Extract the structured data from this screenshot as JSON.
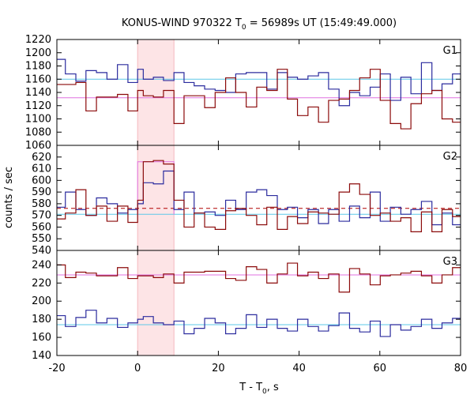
{
  "chart_data": {
    "type": "line",
    "title_main": "KONUS-WIND 970322 T",
    "title_sub": "0",
    "title_rest": " = 56989s UT (15:49:49.000)",
    "xlabel_main": "T - T",
    "xlabel_sub": "0",
    "xlabel_rest": ", s",
    "ylabel": "counts / sec",
    "xlim": [
      -20,
      80
    ],
    "x_ticks": [
      -20,
      0,
      20,
      40,
      60,
      80
    ],
    "highlight_interval": [
      0,
      9
    ],
    "colors": {
      "blue": "#2b2b9e",
      "red": "#8b0a0a",
      "cyan_fit": "#5ec8e8",
      "pink_fit": "#e070e0",
      "red_dash": "#b00000",
      "highlight": "#fde4e6"
    },
    "panels": [
      {
        "name": "G1",
        "ylim": [
          1060,
          1220
        ],
        "y_ticks": [
          1060,
          1080,
          1100,
          1120,
          1140,
          1160,
          1180,
          1200,
          1220
        ],
        "x_edges": [
          -20,
          -17.9,
          -15.3,
          -12.8,
          -10.2,
          -7.6,
          -5,
          -2.4,
          0,
          1.4,
          3.9,
          6.4,
          9,
          11.5,
          14,
          16.6,
          19.2,
          21.8,
          24.3,
          26.9,
          29.5,
          32,
          34.6,
          37.1,
          39.6,
          42.2,
          44.8,
          47.3,
          49.9,
          52.5,
          55,
          57.6,
          60.1,
          62.6,
          65.2,
          67.7,
          70.3,
          72.9,
          75.4,
          78,
          80
        ],
        "series": [
          {
            "color": "blue",
            "values": [
              1190,
              1168,
              1157,
              1173,
              1170,
              1160,
              1182,
              1155,
              1175,
              1160,
              1163,
              1158,
              1170,
              1155,
              1150,
              1145,
              1143,
              1140,
              1168,
              1170,
              1170,
              1145,
              1170,
              1163,
              1160,
              1165,
              1170,
              1145,
              1120,
              1140,
              1135,
              1148,
              1168,
              1128,
              1163,
              1138,
              1185,
              1143,
              1153,
              1168
            ]
          },
          {
            "color": "red",
            "values": [
              1152,
              1152,
              1155,
              1112,
              1133,
              1133,
              1137,
              1112,
              1143,
              1135,
              1133,
              1143,
              1093,
              1135,
              1135,
              1117,
              1140,
              1162,
              1140,
              1118,
              1148,
              1143,
              1175,
              1130,
              1105,
              1118,
              1095,
              1128,
              1130,
              1143,
              1162,
              1175,
              1128,
              1093,
              1085,
              1123,
              1138,
              1143,
              1100,
              1095
            ]
          }
        ],
        "fits": [
          {
            "color": "cyan_fit",
            "value": 1160,
            "style": "solid"
          },
          {
            "color": "pink_fit",
            "value": 1132,
            "style": "solid"
          }
        ]
      },
      {
        "name": "G2",
        "ylim": [
          540,
          630
        ],
        "y_ticks": [
          540,
          550,
          560,
          570,
          580,
          590,
          600,
          610,
          620
        ],
        "x_edges": [
          -20,
          -17.9,
          -15.3,
          -12.8,
          -10.2,
          -7.6,
          -5,
          -2.4,
          0,
          1.4,
          3.9,
          6.4,
          9,
          11.5,
          14,
          16.6,
          19.2,
          21.8,
          24.3,
          26.9,
          29.5,
          32,
          34.6,
          37.1,
          39.6,
          42.2,
          44.8,
          47.3,
          49.9,
          52.5,
          55,
          57.6,
          60.1,
          62.6,
          65.2,
          67.7,
          70.3,
          72.9,
          75.4,
          78,
          80
        ],
        "series": [
          {
            "color": "blue",
            "values": [
              577,
              590,
              575,
              570,
              585,
              580,
              572,
              575,
              580,
              598,
              597,
              608,
              575,
              590,
              572,
              573,
              570,
              583,
              575,
              590,
              592,
              587,
              575,
              577,
              568,
              575,
              563,
              575,
              565,
              578,
              568,
              590,
              565,
              577,
              571,
              575,
              582,
              562,
              572,
              562
            ]
          },
          {
            "color": "red",
            "values": [
              567,
              572,
              592,
              570,
              578,
              565,
              578,
              564,
              583,
              616,
              617,
              614,
              583,
              560,
              572,
              560,
              558,
              574,
              576,
              570,
              562,
              577,
              558,
              569,
              563,
              573,
              572,
              571,
              590,
              597,
              588,
              570,
              572,
              565,
              568,
              556,
              573,
              556,
              575,
              569
            ]
          }
        ],
        "fits": [
          {
            "color": "cyan_fit",
            "value": 571,
            "style": "solid"
          },
          {
            "color": "red_dash",
            "value": 576,
            "style": "dashed"
          }
        ],
        "peak_fit": {
          "color": "pink_fit",
          "from": 0,
          "to": 9,
          "value": 616
        }
      },
      {
        "name": "G3",
        "ylim": [
          140,
          256
        ],
        "y_ticks": [
          140,
          160,
          180,
          200,
          220,
          240
        ],
        "x_edges": [
          -20,
          -17.9,
          -15.3,
          -12.8,
          -10.2,
          -7.6,
          -5,
          -2.4,
          0,
          1.4,
          3.9,
          6.4,
          9,
          11.5,
          14,
          16.6,
          19.2,
          21.8,
          24.3,
          26.9,
          29.5,
          32,
          34.6,
          37.1,
          39.6,
          42.2,
          44.8,
          47.3,
          49.9,
          52.5,
          55,
          57.6,
          60.1,
          62.6,
          65.2,
          67.7,
          70.3,
          72.9,
          75.4,
          78,
          80
        ],
        "series": [
          {
            "color": "red",
            "values": [
              240,
              226,
              232,
              231,
              228,
              228,
              237,
              225,
              228,
              228,
              226,
              230,
              220,
              232,
              232,
              233,
              233,
              225,
              223,
              238,
              235,
              220,
              230,
              242,
              228,
              232,
              225,
              230,
              210,
              236,
              230,
              218,
              228,
              229,
              231,
              233,
              228,
              220,
              229,
              237
            ]
          },
          {
            "color": "blue",
            "values": [
              184,
              172,
              182,
              190,
              176,
              181,
              171,
              176,
              180,
              183,
              176,
              174,
              178,
              164,
              170,
              181,
              176,
              164,
              170,
              185,
              171,
              180,
              170,
              167,
              180,
              172,
              167,
              173,
              187,
              170,
              166,
              178,
              161,
              174,
              168,
              172,
              180,
              170,
              176,
              181
            ]
          }
        ],
        "fits": [
          {
            "color": "pink_fit",
            "value": 229,
            "style": "solid"
          },
          {
            "color": "cyan_fit",
            "value": 174,
            "style": "solid"
          }
        ]
      }
    ]
  }
}
